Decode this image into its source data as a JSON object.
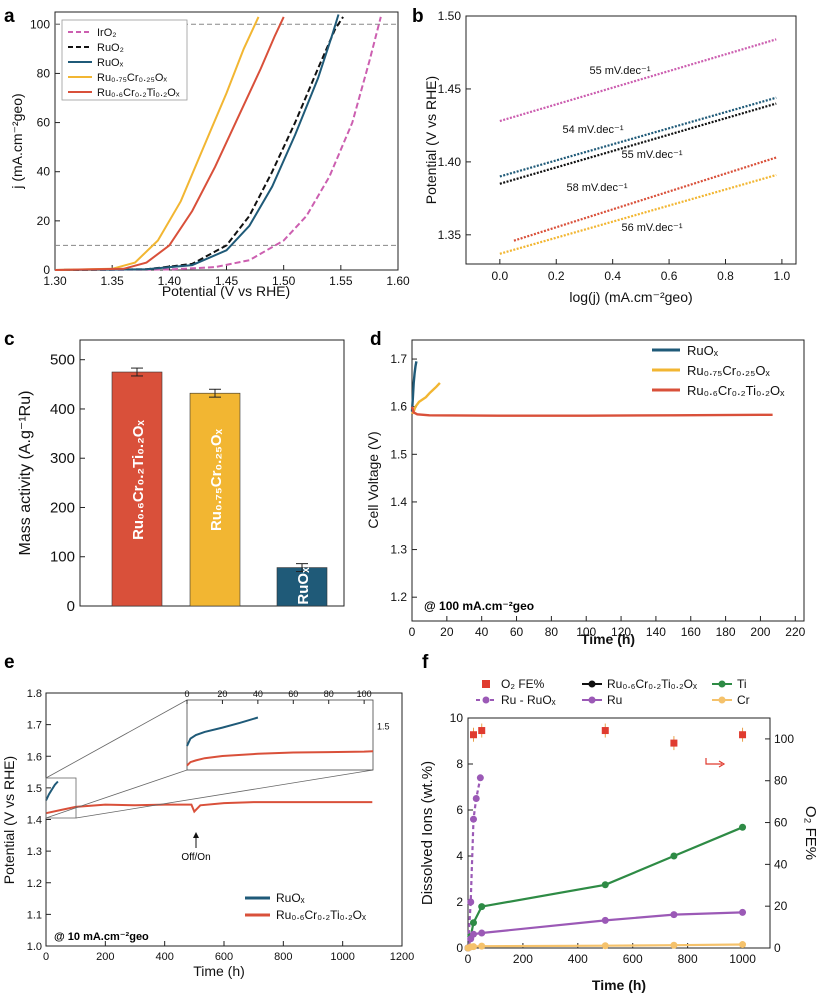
{
  "panels": {
    "a": {
      "label": "a",
      "xlabel": "Potential (V vs RHE)",
      "ylabel": "j (mA.cm⁻²geo)",
      "xticks": [
        "1.30",
        "1.35",
        "1.40",
        "1.45",
        "1.50",
        "1.55",
        "1.60"
      ],
      "yticks": [
        "0",
        "20",
        "40",
        "60",
        "80",
        "100"
      ],
      "legend": [
        "IrO₂",
        "RuO₂",
        "RuOₓ",
        "Ru₀.₇₅Cr₀.₂₅Oₓ",
        "Ru₀.₆Cr₀.₂Ti₀.₂Oₓ"
      ]
    },
    "b": {
      "label": "b",
      "xlabel": "log(j) (mA.cm⁻²geo)",
      "ylabel": "Potential (V vs RHE)",
      "xticks": [
        "0.0",
        "0.2",
        "0.4",
        "0.6",
        "0.8",
        "1.0"
      ],
      "yticks": [
        "1.35",
        "1.40",
        "1.45",
        "1.50"
      ],
      "annotations": [
        "55 mV.dec⁻¹",
        "54 mV.dec⁻¹",
        "55 mV.dec⁻¹",
        "58 mV.dec⁻¹",
        "56 mV.dec⁻¹"
      ]
    },
    "c": {
      "label": "c",
      "ylabel": "Mass activity (A.g⁻¹Ru)",
      "yticks": [
        "0",
        "100",
        "200",
        "300",
        "400",
        "500"
      ],
      "bar_labels": [
        "Ru₀.₆Cr₀.₂Ti₀.₂Oₓ",
        "Ru₀.₇₅Cr₀.₂₅Oₓ",
        "RuOₓ"
      ]
    },
    "d": {
      "label": "d",
      "xlabel": "Time (h)",
      "ylabel": "Cell Voltage (V)",
      "xticks": [
        "0",
        "20",
        "40",
        "60",
        "80",
        "100",
        "120",
        "140",
        "160",
        "180",
        "200",
        "220"
      ],
      "yticks": [
        "1.2",
        "1.3",
        "1.4",
        "1.5",
        "1.6",
        "1.7"
      ],
      "legend": [
        "RuOₓ",
        "Ru₀.₇₅Cr₀.₂₅Oₓ",
        "Ru₀.₆Cr₀.₂Ti₀.₂Oₓ"
      ],
      "annotation": "@ 100 mA.cm⁻²geo"
    },
    "e": {
      "label": "e",
      "xlabel": "Time (h)",
      "ylabel": "Potential (V vs RHE)",
      "xticks": [
        "0",
        "200",
        "400",
        "600",
        "800",
        "1000",
        "1200"
      ],
      "yticks": [
        "1.0",
        "1.1",
        "1.2",
        "1.3",
        "1.4",
        "1.5",
        "1.6",
        "1.7",
        "1.8"
      ],
      "legend": [
        "RuOₓ",
        "Ru₀.₆Cr₀.₂Ti₀.₂Oₓ"
      ],
      "annotation": "@ 10 mA.cm⁻²geo",
      "offon": "Off/On",
      "inset_xticks": [
        "0",
        "20",
        "40",
        "60",
        "80",
        "100"
      ],
      "inset_ytick": "1.5"
    },
    "f": {
      "label": "f",
      "xlabel": "Time (h)",
      "ylabel": "Dissolved Ions (wt.%)",
      "y2label": "O₂ FE%",
      "xticks": [
        "0",
        "200",
        "400",
        "600",
        "800",
        "1000"
      ],
      "yticks": [
        "0",
        "2",
        "4",
        "6",
        "8",
        "10"
      ],
      "y2ticks": [
        "0",
        "20",
        "40",
        "60",
        "80",
        "100"
      ],
      "legend": [
        "O₂ FE%",
        "Ru - RuOₓ",
        "Ru₀.₆Cr₀.₂Ti₀.₂Oₓ",
        "Ru",
        "Ti",
        "Cr"
      ]
    }
  },
  "colors": {
    "iro2": "#cc5fb0",
    "ruo2": "#111111",
    "ruox": "#1f5a78",
    "rucr": "#f2b632",
    "rucrti": "#d9503a",
    "ti": "#2e8b45",
    "ru": "#9b59b6",
    "cr": "#f5c26b",
    "fe": "#e03b2f"
  },
  "chart_data": [
    {
      "panel": "a",
      "type": "line",
      "xlabel": "Potential (V vs RHE)",
      "ylabel": "j (mA.cm-2 geo)",
      "xlim": [
        1.3,
        1.6
      ],
      "ylim": [
        0,
        105
      ],
      "reference_lines_y": [
        10,
        100
      ],
      "series": [
        {
          "name": "IrO₂",
          "key": "iro2",
          "dash": true,
          "x": [
            1.3,
            1.4,
            1.44,
            1.47,
            1.5,
            1.52,
            1.54,
            1.56,
            1.575,
            1.585
          ],
          "y": [
            0,
            0.2,
            1.2,
            4,
            12,
            22,
            38,
            60,
            85,
            103
          ]
        },
        {
          "name": "RuO₂",
          "key": "ruo2",
          "dash": true,
          "x": [
            1.3,
            1.38,
            1.42,
            1.45,
            1.47,
            1.49,
            1.51,
            1.53,
            1.545,
            1.552
          ],
          "y": [
            0,
            0.3,
            2.5,
            10,
            22,
            40,
            60,
            82,
            98,
            103
          ]
        },
        {
          "name": "RuOₓ",
          "key": "ruox",
          "dash": false,
          "x": [
            1.3,
            1.38,
            1.42,
            1.45,
            1.47,
            1.49,
            1.51,
            1.53,
            1.542,
            1.548
          ],
          "y": [
            0,
            0.3,
            2,
            8,
            18,
            34,
            55,
            78,
            95,
            104
          ]
        },
        {
          "name": "Ru₀.₇₅Cr₀.₂₅Oₓ",
          "key": "rucr",
          "dash": false,
          "x": [
            1.3,
            1.35,
            1.37,
            1.39,
            1.41,
            1.43,
            1.45,
            1.465,
            1.478
          ],
          "y": [
            0,
            0.5,
            3,
            12,
            28,
            50,
            72,
            90,
            103
          ]
        },
        {
          "name": "Ru₀.₆Cr₀.₂Ti₀.₂Oₓ",
          "key": "rucrti",
          "dash": false,
          "x": [
            1.3,
            1.36,
            1.38,
            1.4,
            1.42,
            1.44,
            1.46,
            1.48,
            1.492,
            1.5
          ],
          "y": [
            0,
            0.5,
            3,
            10,
            24,
            42,
            62,
            82,
            95,
            103
          ]
        }
      ]
    },
    {
      "panel": "b",
      "type": "line",
      "xlabel": "log(j) (mA.cm-2 geo)",
      "ylabel": "Potential (V vs RHE)",
      "xlim": [
        -0.12,
        1.05
      ],
      "ylim": [
        1.33,
        1.5
      ],
      "series": [
        {
          "name": "IrO₂",
          "key": "iro2",
          "x0": 0.0,
          "y0": 1.428,
          "x1": 0.98,
          "y1": 1.484,
          "slope_label": "55 mV.dec⁻¹"
        },
        {
          "name": "RuOₓ",
          "key": "ruox",
          "x0": 0.0,
          "y0": 1.39,
          "x1": 0.98,
          "y1": 1.444,
          "slope_label": "54 mV.dec⁻¹"
        },
        {
          "name": "RuO₂",
          "key": "ruo2",
          "x0": 0.0,
          "y0": 1.385,
          "x1": 0.98,
          "y1": 1.44,
          "slope_label": "55 mV.dec⁻¹"
        },
        {
          "name": "Ru₀.₆Cr₀.₂Ti₀.₂Oₓ",
          "key": "rucrti",
          "x0": 0.05,
          "y0": 1.346,
          "x1": 0.98,
          "y1": 1.403,
          "slope_label": "58 mV.dec⁻¹"
        },
        {
          "name": "Ru₀.₇₅Cr₀.₂₅Oₓ",
          "key": "rucr",
          "x0": 0.0,
          "y0": 1.337,
          "x1": 0.98,
          "y1": 1.391,
          "slope_label": "56 mV.dec⁻¹"
        }
      ]
    },
    {
      "panel": "c",
      "type": "bar",
      "ylabel": "Mass activity (A.g-1 Ru)",
      "ylim": [
        0,
        540
      ],
      "categories": [
        "Ru₀.₆Cr₀.₂Ti₀.₂Oₓ",
        "Ru₀.₇₅Cr₀.₂₅Oₓ",
        "RuOₓ"
      ],
      "keys": [
        "rucrti",
        "rucr",
        "ruox"
      ],
      "values": [
        475,
        432,
        78
      ],
      "errors": [
        8,
        8,
        8
      ]
    },
    {
      "panel": "d",
      "type": "line",
      "xlabel": "Time (h)",
      "ylabel": "Cell Voltage (V)",
      "xlim": [
        0,
        225
      ],
      "ylim": [
        1.15,
        1.74
      ],
      "series": [
        {
          "name": "RuOₓ",
          "key": "ruox",
          "x": [
            0,
            0.5,
            1,
            1.5,
            2,
            2.5
          ],
          "y": [
            1.59,
            1.62,
            1.65,
            1.67,
            1.685,
            1.695
          ]
        },
        {
          "name": "Ru₀.₇₅Cr₀.₂₅Oₓ",
          "key": "rucr",
          "x": [
            0,
            1,
            2,
            4,
            6,
            8,
            10,
            12,
            14,
            16
          ],
          "y": [
            1.585,
            1.59,
            1.6,
            1.61,
            1.615,
            1.62,
            1.628,
            1.635,
            1.642,
            1.65
          ]
        },
        {
          "name": "Ru₀.₆Cr₀.₂Ti₀.₂Oₓ",
          "key": "rucrti",
          "x": [
            0,
            1,
            3,
            10,
            50,
            100,
            150,
            200,
            207
          ],
          "y": [
            1.6,
            1.588,
            1.584,
            1.582,
            1.581,
            1.581,
            1.582,
            1.583,
            1.583
          ]
        }
      ]
    },
    {
      "panel": "e",
      "type": "line",
      "xlabel": "Time (h)",
      "ylabel": "Potential (V vs RHE)",
      "xlim": [
        0,
        1200
      ],
      "ylim": [
        1.0,
        1.8
      ],
      "series": [
        {
          "name": "RuOₓ",
          "key": "ruox",
          "x": [
            0,
            10,
            20,
            30,
            40
          ],
          "y": [
            1.46,
            1.48,
            1.495,
            1.51,
            1.52
          ]
        },
        {
          "name": "Ru₀.₆Cr₀.₂Ti₀.₂Oₓ",
          "key": "rucrti",
          "x": [
            0,
            50,
            100,
            200,
            300,
            400,
            490,
            500,
            520,
            600,
            700,
            800,
            900,
            1000,
            1100
          ],
          "y": [
            1.42,
            1.43,
            1.44,
            1.447,
            1.445,
            1.447,
            1.447,
            1.425,
            1.445,
            1.452,
            1.455,
            1.455,
            1.455,
            1.455,
            1.455
          ]
        }
      ]
    },
    {
      "panel": "f",
      "type": "scatter",
      "xlabel": "Time (h)",
      "ylabel": "Dissolved Ions (wt.%)",
      "y2label": "O₂ FE%",
      "xlim": [
        0,
        1100
      ],
      "ylim": [
        0,
        10
      ],
      "y2lim": [
        0,
        110
      ],
      "series": [
        {
          "name": "O₂ FE%",
          "key": "fe",
          "axis": "right",
          "x": [
            20,
            50,
            500,
            750,
            1000
          ],
          "y": [
            102,
            104,
            104,
            98,
            102
          ]
        },
        {
          "name": "Ru - RuOₓ",
          "key": "ru",
          "dash": true,
          "x": [
            0,
            10,
            20,
            30,
            45
          ],
          "y": [
            0,
            2,
            5.6,
            6.5,
            7.4
          ]
        },
        {
          "name": "Ti",
          "key": "ti",
          "x": [
            0,
            10,
            20,
            50,
            500,
            750,
            1000
          ],
          "y": [
            0,
            0.5,
            1.1,
            1.8,
            2.75,
            4.0,
            5.25
          ]
        },
        {
          "name": "Ru",
          "key": "ru",
          "x": [
            0,
            10,
            20,
            50,
            500,
            750,
            1000
          ],
          "y": [
            0,
            0.4,
            0.6,
            0.65,
            1.2,
            1.45,
            1.55
          ]
        },
        {
          "name": "Cr",
          "key": "cr",
          "x": [
            0,
            10,
            20,
            50,
            500,
            750,
            1000
          ],
          "y": [
            0,
            0.05,
            0.06,
            0.08,
            0.1,
            0.12,
            0.15
          ]
        }
      ]
    }
  ]
}
